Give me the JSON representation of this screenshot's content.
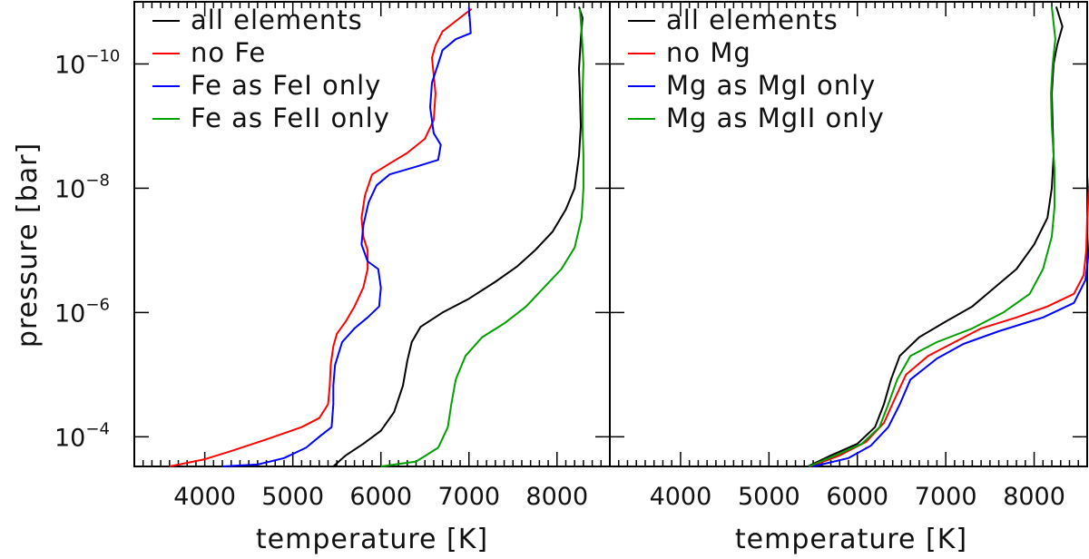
{
  "chart_data": {
    "type": "line",
    "ylabel": "pressure [bar]",
    "yscale": "log",
    "ylim": [
      0.0003,
      1e-11
    ],
    "yticks": [
      {
        "value": 0.0001,
        "exp": "−4"
      },
      {
        "value": 1e-06,
        "exp": "−6"
      },
      {
        "value": 1e-08,
        "exp": "−8"
      },
      {
        "value": 1e-10,
        "exp": "−10"
      }
    ],
    "ytick_base": "10",
    "xlim": [
      3200,
      8600
    ],
    "xticks": [
      4000,
      5000,
      6000,
      7000,
      8000
    ],
    "xlabel": "temperature [K]",
    "legend_position": "top-left",
    "grid": false,
    "panels": [
      {
        "series": [
          {
            "name": "all elements",
            "color": "#000000",
            "points": [
              [
                5460,
                0.0003
              ],
              [
                5600,
                0.0002
              ],
              [
                5800,
                0.00013
              ],
              [
                6000,
                8e-05
              ],
              [
                6150,
                4e-05
              ],
              [
                6250,
                1.5e-05
              ],
              [
                6300,
                6e-06
              ],
              [
                6350,
                3e-06
              ],
              [
                6450,
                1.7e-06
              ],
              [
                6700,
                1e-06
              ],
              [
                7000,
                6e-07
              ],
              [
                7300,
                3.2e-07
              ],
              [
                7550,
                1.8e-07
              ],
              [
                7750,
                1e-07
              ],
              [
                7950,
                5e-08
              ],
              [
                8100,
                2.2e-08
              ],
              [
                8200,
                1e-08
              ],
              [
                8250,
                3e-09
              ],
              [
                8270,
                1e-09
              ],
              [
                8260,
                3e-10
              ],
              [
                8250,
                1.2e-10
              ],
              [
                8270,
                4e-11
              ],
              [
                8290,
                1.8e-11
              ],
              [
                8250,
                1.2e-11
              ]
            ]
          },
          {
            "name": "no Fe",
            "color": "#ff0000",
            "points": [
              [
                3600,
                0.0003
              ],
              [
                4000,
                0.00023
              ],
              [
                4300,
                0.00017
              ],
              [
                4700,
                0.00011
              ],
              [
                5100,
                7e-05
              ],
              [
                5300,
                5e-05
              ],
              [
                5400,
                3e-05
              ],
              [
                5420,
                1.5e-05
              ],
              [
                5430,
                7e-06
              ],
              [
                5460,
                3.5e-06
              ],
              [
                5500,
                2.2e-06
              ],
              [
                5600,
                1.4e-06
              ],
              [
                5700,
                8e-07
              ],
              [
                5800,
                4e-07
              ],
              [
                5850,
                2e-07
              ],
              [
                5850,
                1e-07
              ],
              [
                5800,
                6e-08
              ],
              [
                5780,
                3e-08
              ],
              [
                5820,
                1.3e-08
              ],
              [
                5900,
                6e-09
              ],
              [
                6100,
                4e-09
              ],
              [
                6300,
                2.7e-09
              ],
              [
                6500,
                1.6e-09
              ],
              [
                6600,
                8e-10
              ],
              [
                6620,
                3e-10
              ],
              [
                6600,
                1.5e-10
              ],
              [
                6580,
                8e-11
              ],
              [
                6620,
                5e-11
              ],
              [
                6700,
                3e-11
              ],
              [
                6900,
                1.8e-11
              ],
              [
                7030,
                1.3e-11
              ]
            ]
          },
          {
            "name": "Fe as FeI only",
            "color": "#0000ff",
            "points": [
              [
                4200,
                0.0003
              ],
              [
                4600,
                0.00028
              ],
              [
                4900,
                0.00022
              ],
              [
                5150,
                0.00015
              ],
              [
                5300,
                0.0001
              ],
              [
                5440,
                7e-05
              ],
              [
                5460,
                3e-05
              ],
              [
                5460,
                1.5e-05
              ],
              [
                5480,
                7e-06
              ],
              [
                5560,
                3e-06
              ],
              [
                5700,
                1.8e-06
              ],
              [
                5850,
                1.2e-06
              ],
              [
                5980,
                8e-07
              ],
              [
                6000,
                4e-07
              ],
              [
                5970,
                2e-07
              ],
              [
                5850,
                1.5e-07
              ],
              [
                5780,
                8e-08
              ],
              [
                5800,
                4e-08
              ],
              [
                5860,
                1.7e-08
              ],
              [
                5950,
                9e-09
              ],
              [
                6100,
                6e-09
              ],
              [
                6400,
                4.5e-09
              ],
              [
                6650,
                3.5e-09
              ],
              [
                6680,
                2e-09
              ],
              [
                6600,
                1.3e-09
              ],
              [
                6560,
                5e-10
              ],
              [
                6580,
                2e-10
              ],
              [
                6650,
                1e-10
              ],
              [
                6700,
                6e-11
              ],
              [
                6850,
                4e-11
              ],
              [
                7020,
                3.2e-11
              ],
              [
                7000,
                1.2e-11
              ]
            ]
          },
          {
            "name": "Fe as FeII only",
            "color": "#00a000",
            "points": [
              [
                6000,
                0.0003
              ],
              [
                6400,
                0.00025
              ],
              [
                6650,
                0.00015
              ],
              [
                6760,
                7e-05
              ],
              [
                6800,
                3e-05
              ],
              [
                6850,
                1.2e-05
              ],
              [
                6960,
                5e-06
              ],
              [
                7150,
                2.5e-06
              ],
              [
                7400,
                1.5e-06
              ],
              [
                7650,
                8e-07
              ],
              [
                7850,
                4e-07
              ],
              [
                8050,
                2e-07
              ],
              [
                8200,
                9e-08
              ],
              [
                8280,
                3e-08
              ],
              [
                8300,
                1e-08
              ],
              [
                8300,
                3e-09
              ],
              [
                8290,
                1e-09
              ],
              [
                8290,
                3e-10
              ],
              [
                8300,
                1e-10
              ],
              [
                8280,
                3e-11
              ],
              [
                8260,
                1.3e-11
              ]
            ]
          }
        ],
        "legend": [
          "all elements",
          "no Fe",
          "Fe as FeI only",
          "Fe as FeII only"
        ]
      },
      {
        "series": [
          {
            "name": "all elements",
            "color": "#000000",
            "points": [
              [
                5440,
                0.0003
              ],
              [
                5700,
                0.0002
              ],
              [
                6000,
                0.00013
              ],
              [
                6200,
                7e-05
              ],
              [
                6300,
                3e-05
              ],
              [
                6380,
                1.2e-05
              ],
              [
                6480,
                5e-06
              ],
              [
                6700,
                2.5e-06
              ],
              [
                7000,
                1.4e-06
              ],
              [
                7300,
                8e-07
              ],
              [
                7550,
                4e-07
              ],
              [
                7800,
                2e-07
              ],
              [
                8000,
                8e-08
              ],
              [
                8150,
                3e-08
              ],
              [
                8200,
                1e-08
              ],
              [
                8220,
                3e-09
              ],
              [
                8210,
                1e-09
              ],
              [
                8200,
                3e-10
              ],
              [
                8220,
                1e-10
              ],
              [
                8260,
                5e-11
              ],
              [
                8320,
                2.5e-11
              ],
              [
                8250,
                1.2e-11
              ]
            ]
          },
          {
            "name": "no Mg",
            "color": "#ff0000",
            "points": [
              [
                5470,
                0.0003
              ],
              [
                5800,
                0.0002
              ],
              [
                6100,
                0.00012
              ],
              [
                6300,
                6e-05
              ],
              [
                6420,
                2.5e-05
              ],
              [
                6550,
                1e-05
              ],
              [
                6800,
                5e-06
              ],
              [
                7100,
                3e-06
              ],
              [
                7400,
                1.8e-06
              ],
              [
                7800,
                1.2e-06
              ],
              [
                8150,
                8e-07
              ],
              [
                8450,
                5e-07
              ],
              [
                8560,
                2.5e-07
              ],
              [
                8590,
                1e-07
              ],
              [
                8600,
                3e-08
              ],
              [
                8620,
                1e-08
              ],
              [
                8650,
                3e-09
              ],
              [
                8670,
                1e-09
              ],
              [
                8660,
                3e-10
              ],
              [
                8680,
                1e-10
              ],
              [
                8720,
                4e-11
              ],
              [
                8690,
                1.2e-11
              ]
            ]
          },
          {
            "name": "Mg as MgI only",
            "color": "#0000ff",
            "points": [
              [
                5500,
                0.0003
              ],
              [
                5900,
                0.00022
              ],
              [
                6150,
                0.00014
              ],
              [
                6350,
                7e-05
              ],
              [
                6480,
                3e-05
              ],
              [
                6600,
                1.2e-05
              ],
              [
                6900,
                5.5e-06
              ],
              [
                7200,
                3.2e-06
              ],
              [
                7600,
                2e-06
              ],
              [
                8100,
                1.2e-06
              ],
              [
                8450,
                7e-07
              ],
              [
                8580,
                3e-07
              ],
              [
                8620,
                1e-07
              ],
              [
                8640,
                3e-08
              ],
              [
                8650,
                1e-08
              ],
              [
                8660,
                3e-09
              ],
              [
                8660,
                1e-09
              ],
              [
                8680,
                3e-10
              ],
              [
                8700,
                1e-10
              ],
              [
                8690,
                3e-11
              ],
              [
                8660,
                1.2e-11
              ]
            ]
          },
          {
            "name": "Mg as MgII only",
            "color": "#00a000",
            "points": [
              [
                5450,
                0.0003
              ],
              [
                5750,
                0.0002
              ],
              [
                6050,
                0.00013
              ],
              [
                6250,
                7e-05
              ],
              [
                6350,
                3e-05
              ],
              [
                6450,
                1.2e-05
              ],
              [
                6600,
                5e-06
              ],
              [
                6900,
                3e-06
              ],
              [
                7300,
                1.8e-06
              ],
              [
                7650,
                1e-06
              ],
              [
                7950,
                5e-07
              ],
              [
                8100,
                2e-07
              ],
              [
                8200,
                6e-08
              ],
              [
                8230,
                2e-08
              ],
              [
                8230,
                5e-09
              ],
              [
                8200,
                1e-09
              ],
              [
                8190,
                3e-10
              ],
              [
                8210,
                1e-10
              ],
              [
                8240,
                4e-11
              ],
              [
                8200,
                1.2e-11
              ]
            ]
          }
        ],
        "legend": [
          "all elements",
          "no Mg",
          "Mg as MgI only",
          "Mg as MgII only"
        ]
      }
    ]
  }
}
